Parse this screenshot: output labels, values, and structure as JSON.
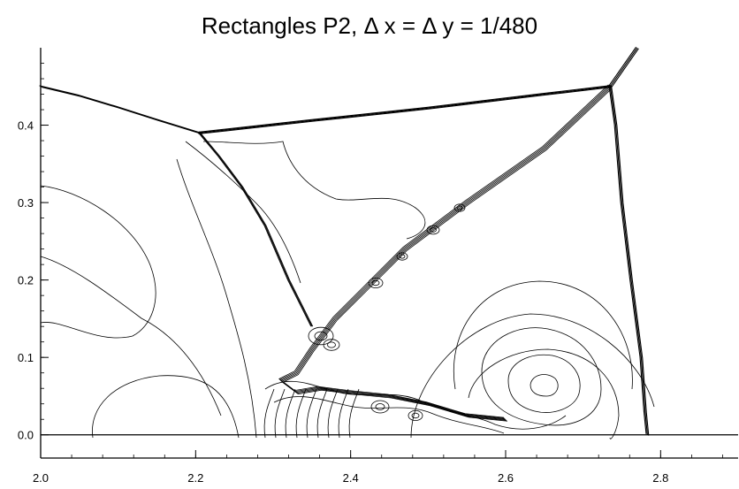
{
  "chart_data": {
    "type": "contour",
    "title": "Rectangles P2, Δ x = Δ y = 1/480",
    "xlabel": "",
    "ylabel": "",
    "xlim": [
      2.0,
      2.9
    ],
    "ylim": [
      -0.03,
      0.5
    ],
    "x_ticks": [
      "2.0",
      "2.2",
      "2.4",
      "2.6",
      "2.8"
    ],
    "x_tick_values": [
      2.0,
      2.2,
      2.4,
      2.6,
      2.8
    ],
    "y_ticks": [
      "0.0",
      "0.1",
      "0.2",
      "0.3",
      "0.4"
    ],
    "y_tick_values": [
      0.0,
      0.1,
      0.2,
      0.3,
      0.4
    ],
    "grid": false,
    "line_color": "#000000",
    "features": {
      "wall_y": 0.0,
      "triple_points": [
        [
          2.205,
          0.39
        ],
        [
          2.735,
          0.45
        ]
      ],
      "incident_shock": [
        [
          2.0,
          0.45
        ],
        [
          2.05,
          0.438
        ],
        [
          2.1,
          0.423
        ],
        [
          2.15,
          0.407
        ],
        [
          2.205,
          0.39
        ]
      ],
      "mach_stem": [
        [
          2.205,
          0.39
        ],
        [
          2.35,
          0.406
        ],
        [
          2.5,
          0.422
        ],
        [
          2.65,
          0.44
        ],
        [
          2.735,
          0.45
        ]
      ],
      "upper_shock": [
        [
          2.735,
          0.45
        ],
        [
          2.77,
          0.5
        ]
      ],
      "right_shock": [
        [
          2.735,
          0.45
        ],
        [
          2.742,
          0.4
        ],
        [
          2.75,
          0.3
        ],
        [
          2.762,
          0.2
        ],
        [
          2.775,
          0.1
        ],
        [
          2.78,
          0.03
        ],
        [
          2.783,
          0.0
        ]
      ],
      "curved_shock": [
        [
          2.205,
          0.39
        ],
        [
          2.23,
          0.36
        ],
        [
          2.26,
          0.32
        ],
        [
          2.29,
          0.27
        ],
        [
          2.32,
          0.2
        ],
        [
          2.34,
          0.16
        ],
        [
          2.35,
          0.14
        ]
      ],
      "slip_line": [
        [
          2.735,
          0.45
        ],
        [
          2.65,
          0.37
        ],
        [
          2.55,
          0.3
        ],
        [
          2.47,
          0.24
        ],
        [
          2.42,
          0.19
        ],
        [
          2.38,
          0.15
        ],
        [
          2.35,
          0.11
        ],
        [
          2.33,
          0.08
        ],
        [
          2.31,
          0.07
        ],
        [
          2.33,
          0.055
        ],
        [
          2.36,
          0.06
        ],
        [
          2.4,
          0.055
        ],
        [
          2.45,
          0.05
        ],
        [
          2.5,
          0.04
        ],
        [
          2.55,
          0.025
        ],
        [
          2.6,
          0.02
        ]
      ]
    }
  }
}
